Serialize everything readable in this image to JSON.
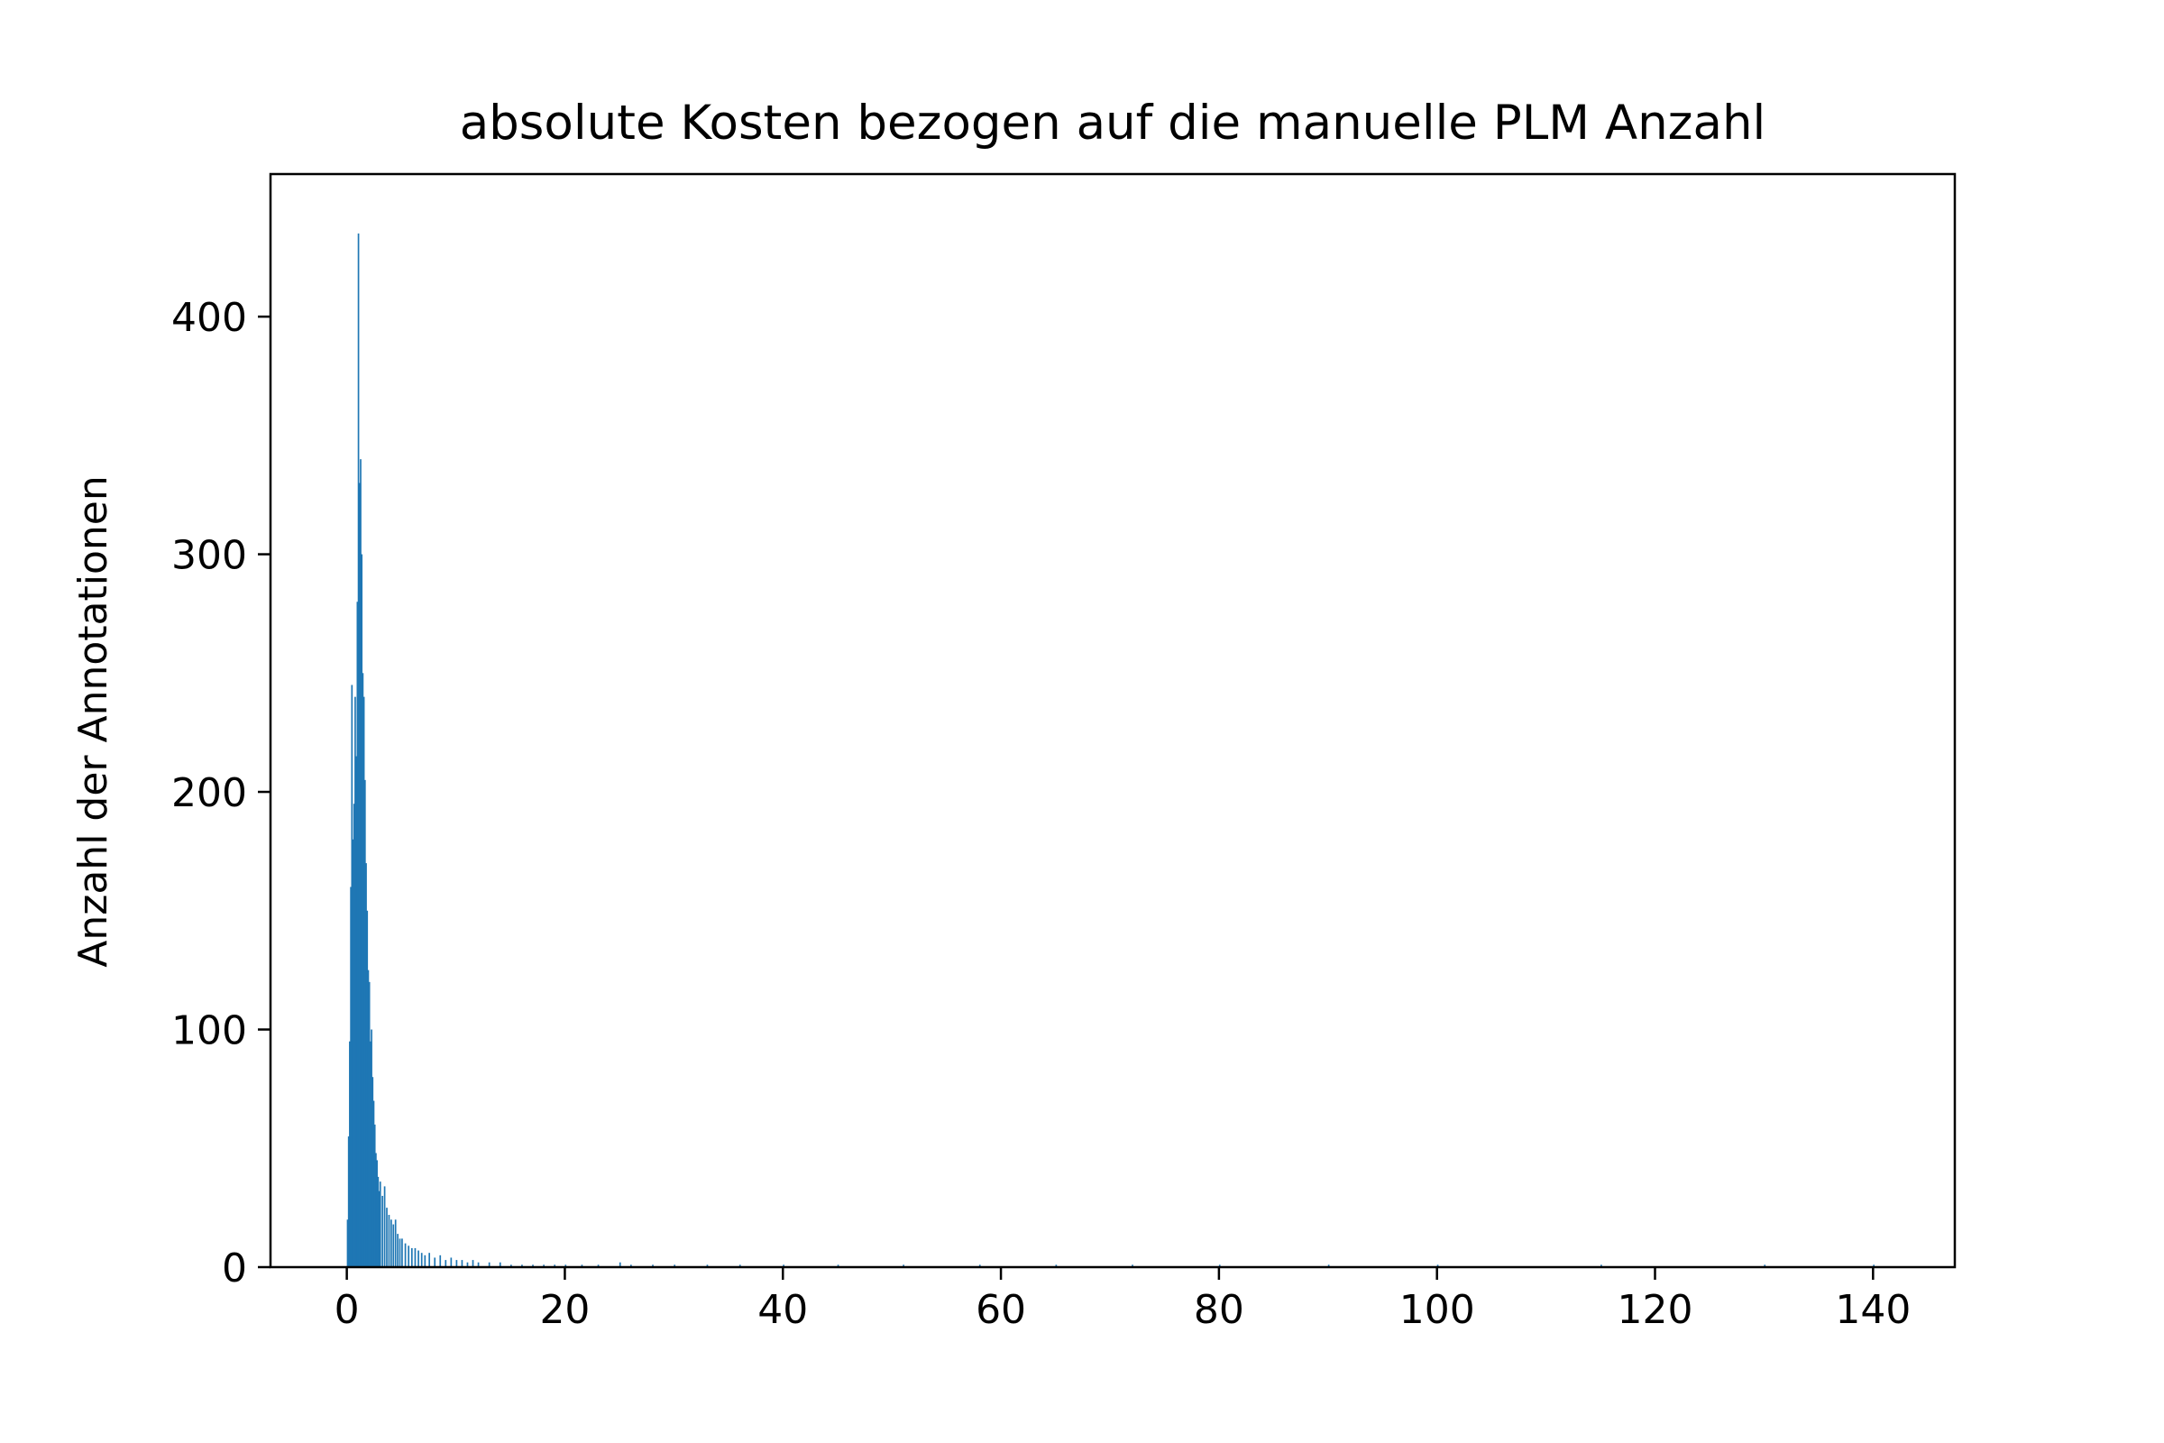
{
  "chart_data": {
    "type": "bar",
    "title": "absolute Kosten bezogen auf die manuelle PLM Anzahl",
    "xlabel": "",
    "ylabel": "Anzahl der Annotationen",
    "xlim": [
      -7,
      147.5
    ],
    "ylim": [
      0,
      460
    ],
    "xticks": [
      0,
      20,
      40,
      60,
      80,
      100,
      120,
      140
    ],
    "yticks": [
      0,
      100,
      200,
      300,
      400
    ],
    "grid": false,
    "bar_color": "#1f77b4",
    "bin_width": 0.14,
    "bins": [
      {
        "x": 0.0,
        "y": 20
      },
      {
        "x": 0.1,
        "y": 55
      },
      {
        "x": 0.2,
        "y": 95
      },
      {
        "x": 0.3,
        "y": 160
      },
      {
        "x": 0.4,
        "y": 245
      },
      {
        "x": 0.5,
        "y": 180
      },
      {
        "x": 0.6,
        "y": 195
      },
      {
        "x": 0.7,
        "y": 240
      },
      {
        "x": 0.8,
        "y": 215
      },
      {
        "x": 0.9,
        "y": 280
      },
      {
        "x": 1.0,
        "y": 435
      },
      {
        "x": 1.1,
        "y": 330
      },
      {
        "x": 1.2,
        "y": 340
      },
      {
        "x": 1.3,
        "y": 300
      },
      {
        "x": 1.4,
        "y": 250
      },
      {
        "x": 1.5,
        "y": 240
      },
      {
        "x": 1.6,
        "y": 205
      },
      {
        "x": 1.7,
        "y": 170
      },
      {
        "x": 1.8,
        "y": 150
      },
      {
        "x": 1.9,
        "y": 125
      },
      {
        "x": 2.0,
        "y": 120
      },
      {
        "x": 2.1,
        "y": 95
      },
      {
        "x": 2.2,
        "y": 100
      },
      {
        "x": 2.3,
        "y": 80
      },
      {
        "x": 2.4,
        "y": 70
      },
      {
        "x": 2.5,
        "y": 60
      },
      {
        "x": 2.6,
        "y": 48
      },
      {
        "x": 2.7,
        "y": 45
      },
      {
        "x": 2.8,
        "y": 38
      },
      {
        "x": 2.9,
        "y": 32
      },
      {
        "x": 3.0,
        "y": 36
      },
      {
        "x": 3.2,
        "y": 30
      },
      {
        "x": 3.4,
        "y": 34
      },
      {
        "x": 3.6,
        "y": 25
      },
      {
        "x": 3.8,
        "y": 22
      },
      {
        "x": 4.0,
        "y": 20
      },
      {
        "x": 4.2,
        "y": 18
      },
      {
        "x": 4.4,
        "y": 20
      },
      {
        "x": 4.6,
        "y": 14
      },
      {
        "x": 4.8,
        "y": 12
      },
      {
        "x": 5.0,
        "y": 12
      },
      {
        "x": 5.3,
        "y": 10
      },
      {
        "x": 5.6,
        "y": 9
      },
      {
        "x": 5.9,
        "y": 8
      },
      {
        "x": 6.2,
        "y": 8
      },
      {
        "x": 6.5,
        "y": 7
      },
      {
        "x": 6.8,
        "y": 6
      },
      {
        "x": 7.1,
        "y": 5
      },
      {
        "x": 7.5,
        "y": 6
      },
      {
        "x": 8.0,
        "y": 4
      },
      {
        "x": 8.5,
        "y": 5
      },
      {
        "x": 9.0,
        "y": 3
      },
      {
        "x": 9.5,
        "y": 4
      },
      {
        "x": 10.0,
        "y": 3
      },
      {
        "x": 10.5,
        "y": 3
      },
      {
        "x": 11.0,
        "y": 2
      },
      {
        "x": 11.5,
        "y": 3
      },
      {
        "x": 12.0,
        "y": 2
      },
      {
        "x": 13.0,
        "y": 2
      },
      {
        "x": 14.0,
        "y": 2
      },
      {
        "x": 15.0,
        "y": 1
      },
      {
        "x": 16.0,
        "y": 1
      },
      {
        "x": 17.0,
        "y": 1
      },
      {
        "x": 18.0,
        "y": 1
      },
      {
        "x": 19.0,
        "y": 1
      },
      {
        "x": 20.0,
        "y": 1
      },
      {
        "x": 21.5,
        "y": 1
      },
      {
        "x": 23.0,
        "y": 1
      },
      {
        "x": 25.0,
        "y": 2
      },
      {
        "x": 26.0,
        "y": 1
      },
      {
        "x": 28.0,
        "y": 1
      },
      {
        "x": 30.0,
        "y": 1
      },
      {
        "x": 33.0,
        "y": 1
      },
      {
        "x": 36.0,
        "y": 1
      },
      {
        "x": 40.0,
        "y": 1
      },
      {
        "x": 45.0,
        "y": 1
      },
      {
        "x": 51.0,
        "y": 1
      },
      {
        "x": 58.0,
        "y": 1
      },
      {
        "x": 65.0,
        "y": 1
      },
      {
        "x": 72.0,
        "y": 1
      },
      {
        "x": 80.0,
        "y": 1
      },
      {
        "x": 90.0,
        "y": 1
      },
      {
        "x": 100.0,
        "y": 1
      },
      {
        "x": 115.0,
        "y": 1
      },
      {
        "x": 130.0,
        "y": 1
      },
      {
        "x": 140.0,
        "y": 1
      }
    ]
  }
}
